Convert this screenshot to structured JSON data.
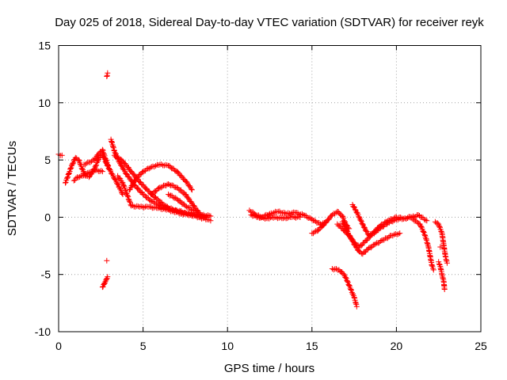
{
  "chart_data": {
    "type": "scatter",
    "title": "Day 025 of 2018, Sidereal Day-to-day VTEC variation (SDTVAR) for receiver reyk",
    "xlabel": "GPS time / hours",
    "ylabel": "SDTVAR / TECUs",
    "xlim": [
      0,
      25
    ],
    "ylim": [
      -10,
      15
    ],
    "xticks": [
      0,
      5,
      10,
      15,
      20,
      25
    ],
    "xtick_labels": [
      "0",
      "5",
      "10",
      "15",
      "20",
      "25"
    ],
    "yticks": [
      -10,
      -5,
      0,
      5,
      10,
      15
    ],
    "ytick_labels": [
      "-10",
      "-5",
      "0",
      "5",
      "10",
      "15"
    ],
    "grid": true,
    "marker": "+",
    "marker_color": "#ff0000",
    "series": [
      {
        "name": "SDTVAR",
        "segments": [
          [
            [
              0.0,
              5.5
            ],
            [
              0.2,
              5.4
            ]
          ],
          [
            [
              0.4,
              3.0
            ],
            [
              0.6,
              3.8
            ],
            [
              0.8,
              4.6
            ],
            [
              1.0,
              5.2
            ],
            [
              1.2,
              5.0
            ],
            [
              1.4,
              4.2
            ],
            [
              1.6,
              3.6
            ],
            [
              1.8,
              3.5
            ],
            [
              2.0,
              3.9
            ],
            [
              2.2,
              4.5
            ],
            [
              2.4,
              5.2
            ],
            [
              2.6,
              5.5
            ],
            [
              2.8,
              4.8
            ],
            [
              3.0,
              4.2
            ]
          ],
          [
            [
              0.9,
              3.2
            ],
            [
              1.1,
              3.5
            ],
            [
              1.4,
              3.6
            ],
            [
              1.8,
              3.9
            ],
            [
              2.2,
              4.1
            ],
            [
              2.6,
              4.0
            ]
          ],
          [
            [
              1.5,
              4.6
            ],
            [
              1.8,
              4.8
            ],
            [
              2.1,
              5.0
            ],
            [
              2.4,
              5.6
            ],
            [
              2.6,
              5.9
            ],
            [
              2.8,
              5.0
            ],
            [
              3.0,
              4.2
            ],
            [
              3.3,
              3.4
            ],
            [
              3.6,
              2.6
            ],
            [
              3.8,
              2.0
            ]
          ],
          [
            [
              2.85,
              12.3
            ],
            [
              2.9,
              12.6
            ]
          ],
          [
            [
              2.85,
              -3.8
            ]
          ],
          [
            [
              2.6,
              -6.1
            ],
            [
              2.7,
              -5.8
            ],
            [
              2.8,
              -5.5
            ],
            [
              2.9,
              -5.2
            ]
          ],
          [
            [
              3.1,
              6.8
            ],
            [
              3.3,
              5.8
            ],
            [
              3.6,
              4.8
            ],
            [
              4.0,
              3.8
            ],
            [
              4.5,
              2.8
            ],
            [
              5.0,
              2.0
            ],
            [
              5.5,
              1.4
            ],
            [
              6.0,
              1.0
            ],
            [
              6.5,
              0.8
            ],
            [
              7.0,
              0.6
            ],
            [
              7.5,
              0.4
            ],
            [
              8.0,
              0.3
            ],
            [
              8.4,
              0.1
            ]
          ],
          [
            [
              3.3,
              5.4
            ],
            [
              3.8,
              4.9
            ],
            [
              4.3,
              4.0
            ],
            [
              4.8,
              3.1
            ],
            [
              5.3,
              2.3
            ],
            [
              5.8,
              1.6
            ],
            [
              6.3,
              1.0
            ],
            [
              6.8,
              0.6
            ],
            [
              7.3,
              0.4
            ],
            [
              7.8,
              0.2
            ],
            [
              8.3,
              0.1
            ],
            [
              8.8,
              0.0
            ]
          ],
          [
            [
              3.5,
              3.6
            ],
            [
              3.8,
              3.0
            ],
            [
              4.0,
              2.2
            ],
            [
              4.2,
              1.4
            ],
            [
              4.3,
              1.0
            ],
            [
              4.8,
              0.9
            ],
            [
              5.3,
              0.9
            ],
            [
              5.8,
              0.8
            ],
            [
              6.3,
              0.7
            ],
            [
              6.8,
              0.5
            ],
            [
              7.3,
              0.3
            ],
            [
              7.8,
              0.2
            ],
            [
              8.3,
              0.0
            ],
            [
              8.8,
              -0.2
            ],
            [
              9.0,
              -0.3
            ]
          ],
          [
            [
              4.2,
              2.4
            ],
            [
              4.6,
              3.4
            ],
            [
              5.0,
              4.0
            ],
            [
              5.5,
              4.4
            ],
            [
              6.0,
              4.6
            ],
            [
              6.5,
              4.5
            ],
            [
              7.0,
              4.0
            ],
            [
              7.5,
              3.2
            ],
            [
              7.9,
              2.4
            ]
          ],
          [
            [
              5.5,
              2.0
            ],
            [
              6.0,
              2.6
            ],
            [
              6.5,
              2.9
            ],
            [
              7.0,
              2.6
            ],
            [
              7.5,
              2.0
            ],
            [
              8.0,
              1.0
            ],
            [
              8.3,
              0.4
            ]
          ],
          [
            [
              6.5,
              2.0
            ],
            [
              7.0,
              1.6
            ],
            [
              7.5,
              1.0
            ],
            [
              8.0,
              0.6
            ],
            [
              8.5,
              0.2
            ],
            [
              9.0,
              0.1
            ]
          ],
          [
            [
              11.3,
              0.6
            ],
            [
              11.6,
              0.3
            ],
            [
              12.0,
              0.0
            ],
            [
              12.5,
              0.3
            ],
            [
              13.0,
              0.5
            ],
            [
              13.5,
              0.3
            ],
            [
              14.0,
              0.4
            ],
            [
              14.5,
              0.2
            ],
            [
              15.0,
              -0.2
            ],
            [
              15.5,
              -0.6
            ],
            [
              15.8,
              -0.5
            ]
          ],
          [
            [
              11.4,
              0.2
            ],
            [
              11.8,
              0.0
            ],
            [
              12.3,
              -0.1
            ],
            [
              12.8,
              0.0
            ],
            [
              13.3,
              -0.1
            ],
            [
              13.8,
              0.0
            ],
            [
              14.3,
              0.0
            ]
          ],
          [
            [
              15.0,
              -1.4
            ],
            [
              15.3,
              -1.2
            ],
            [
              15.6,
              -0.8
            ],
            [
              15.9,
              -0.3
            ],
            [
              16.2,
              0.2
            ],
            [
              16.5,
              0.5
            ],
            [
              16.8,
              0.1
            ],
            [
              17.0,
              -0.6
            ],
            [
              17.2,
              -1.0
            ]
          ],
          [
            [
              16.5,
              -0.6
            ],
            [
              16.8,
              -1.0
            ],
            [
              17.2,
              -1.6
            ],
            [
              17.5,
              -2.2
            ],
            [
              17.8,
              -2.6
            ],
            [
              18.1,
              -2.2
            ],
            [
              18.5,
              -1.6
            ],
            [
              19.0,
              -1.0
            ],
            [
              19.5,
              -0.5
            ],
            [
              20.0,
              -0.2
            ],
            [
              20.5,
              -0.1
            ],
            [
              21.0,
              0.0
            ],
            [
              21.3,
              0.2
            ],
            [
              21.5,
              0.0
            ],
            [
              21.8,
              -0.3
            ]
          ],
          [
            [
              17.4,
              1.1
            ],
            [
              17.6,
              0.6
            ],
            [
              17.8,
              0.0
            ],
            [
              18.0,
              -0.6
            ],
            [
              18.2,
              -1.2
            ],
            [
              18.4,
              -1.6
            ],
            [
              18.6,
              -1.4
            ],
            [
              19.0,
              -0.8
            ],
            [
              19.5,
              -0.3
            ],
            [
              20.0,
              0.0
            ],
            [
              20.5,
              -0.1
            ],
            [
              21.0,
              0.1
            ]
          ],
          [
            [
              16.8,
              -0.4
            ],
            [
              17.0,
              -1.0
            ],
            [
              17.3,
              -1.8
            ],
            [
              17.6,
              -2.6
            ],
            [
              17.8,
              -3.0
            ],
            [
              18.0,
              -3.2
            ],
            [
              18.3,
              -2.8
            ],
            [
              18.7,
              -2.4
            ],
            [
              19.2,
              -2.0
            ],
            [
              19.7,
              -1.6
            ],
            [
              20.2,
              -1.4
            ]
          ],
          [
            [
              16.2,
              -4.5
            ],
            [
              16.6,
              -4.6
            ],
            [
              16.9,
              -5.0
            ],
            [
              17.1,
              -5.6
            ],
            [
              17.3,
              -6.3
            ],
            [
              17.5,
              -7.0
            ],
            [
              17.6,
              -7.5
            ],
            [
              17.65,
              -7.8
            ]
          ],
          [
            [
              21.0,
              -0.2
            ],
            [
              21.4,
              -0.6
            ],
            [
              21.7,
              -1.6
            ],
            [
              21.9,
              -2.6
            ],
            [
              22.0,
              -3.4
            ],
            [
              22.1,
              -4.2
            ],
            [
              22.2,
              -4.6
            ]
          ],
          [
            [
              22.6,
              -2.6
            ]
          ],
          [
            [
              22.3,
              -0.4
            ],
            [
              22.5,
              -0.6
            ],
            [
              22.7,
              -1.4
            ],
            [
              22.8,
              -2.4
            ],
            [
              22.9,
              -3.4
            ],
            [
              23.0,
              -4.0
            ]
          ],
          [
            [
              22.5,
              -3.9
            ],
            [
              22.6,
              -4.3
            ],
            [
              22.7,
              -5.0
            ],
            [
              22.8,
              -5.6
            ],
            [
              22.85,
              -6.3
            ]
          ]
        ]
      }
    ]
  }
}
